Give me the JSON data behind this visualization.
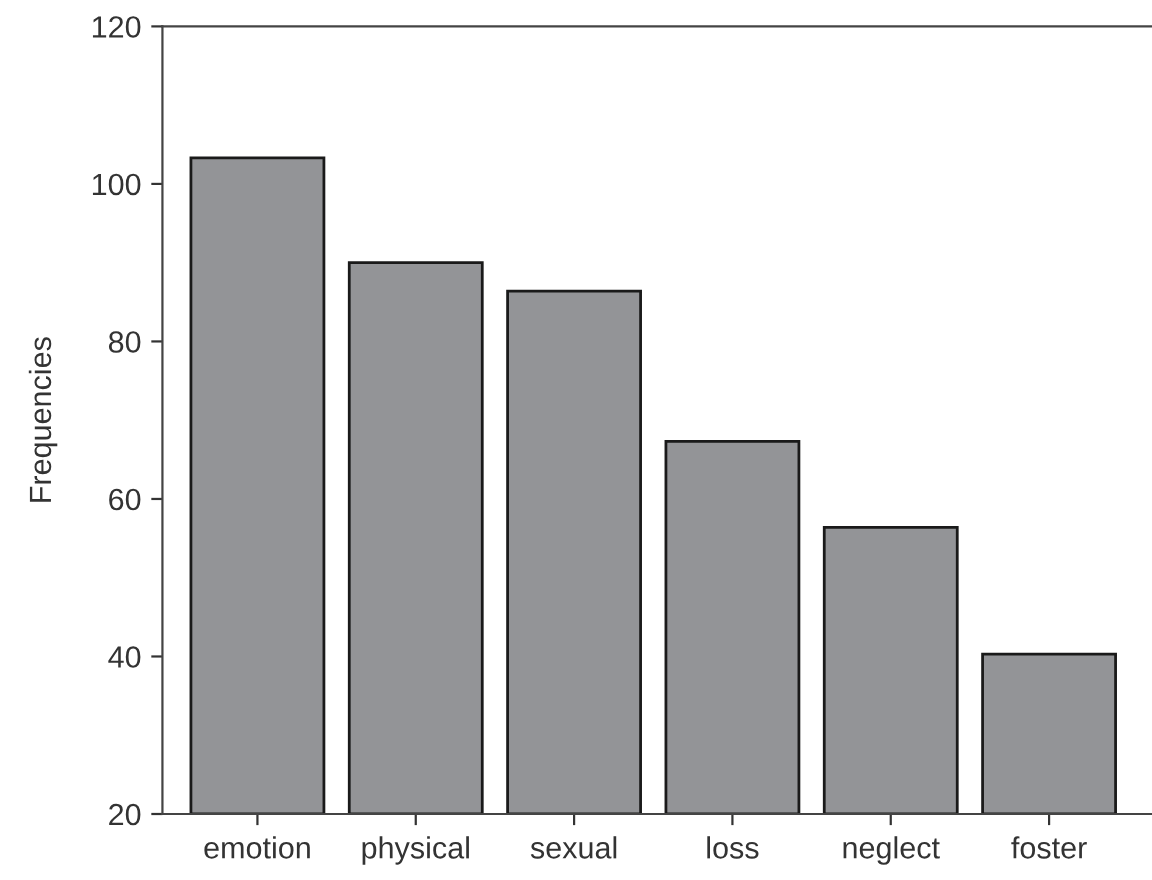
{
  "chart_data": {
    "type": "bar",
    "ylabel": "Frequencies",
    "categories": [
      "emotion",
      "physical",
      "sexual",
      "loss",
      "neglect",
      "foster"
    ],
    "values": [
      103.3,
      90,
      86.4,
      67.3,
      56.4,
      40.3
    ],
    "color": "#939497",
    "ylim": [
      20,
      120
    ],
    "yticks": [
      20,
      40,
      60,
      80,
      100,
      120
    ],
    "grid": false
  }
}
